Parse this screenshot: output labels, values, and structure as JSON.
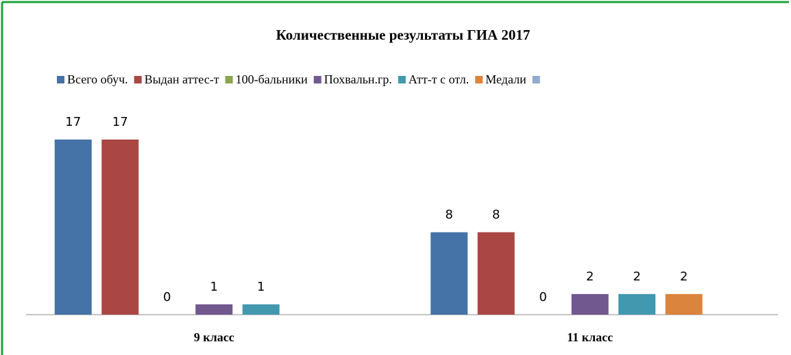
{
  "chart_data": {
    "type": "bar",
    "title": "Количественные результаты  ГИА 2017",
    "categories": [
      "9 класс",
      "11 класс"
    ],
    "series": [
      {
        "name": "Всего обуч.",
        "color": "#4572a7",
        "values": [
          17,
          8
        ]
      },
      {
        "name": "Выдан аттес-т",
        "color": "#aa4643",
        "values": [
          17,
          8
        ]
      },
      {
        "name": "100-бальники",
        "color": "#89a54e",
        "values": [
          0,
          0
        ]
      },
      {
        "name": "Похвальн.гр.",
        "color": "#71588f",
        "values": [
          1,
          2
        ]
      },
      {
        "name": "Атт-т с отл.",
        "color": "#4198af",
        "values": [
          1,
          2
        ]
      },
      {
        "name": "Медали",
        "color": "#db843d",
        "values": [
          null,
          2
        ]
      },
      {
        "color": "#93a9cf",
        "values": [
          null,
          null
        ]
      }
    ],
    "legend": "top"
  }
}
